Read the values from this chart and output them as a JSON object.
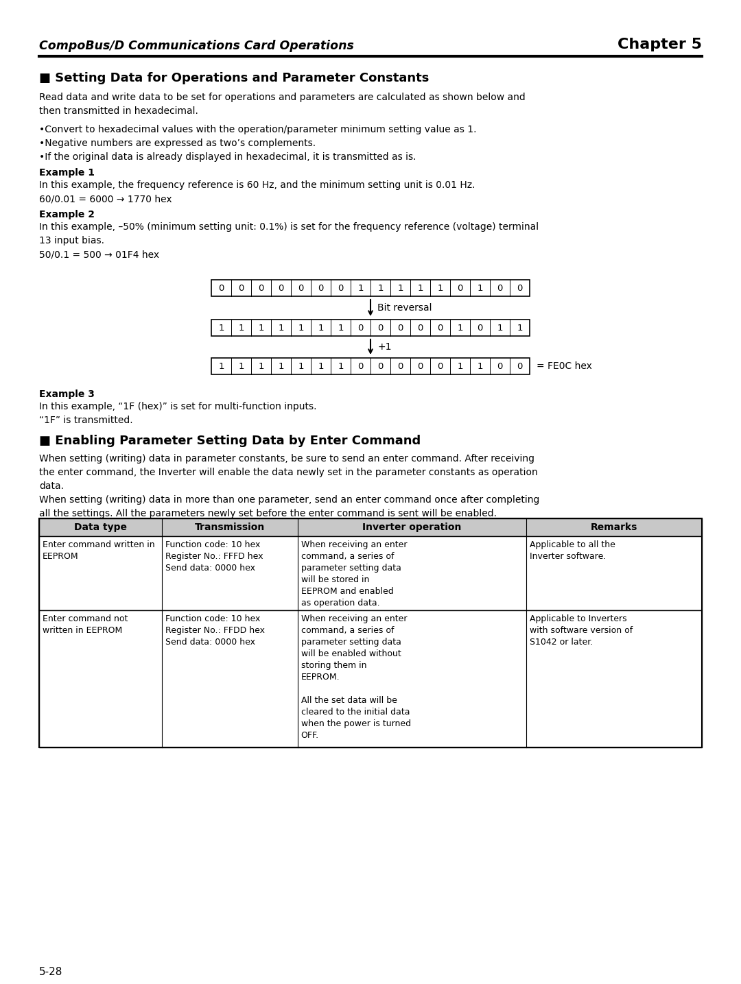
{
  "header_left": "CompoBus/D Communications Card Operations",
  "header_right": "Chapter 5",
  "page_number": "5-28",
  "section1_title": "■ Setting Data for Operations and Parameter Constants",
  "section1_intro": "Read data and write data to be set for operations and parameters are calculated as shown below and\nthen transmitted in hexadecimal.",
  "bullets": [
    "•Convert to hexadecimal values with the operation/parameter minimum setting value as 1.",
    "•Negative numbers are expressed as two’s complements.",
    "•If the original data is already displayed in hexadecimal, it is transmitted as is."
  ],
  "ex1_title": "Example 1",
  "ex1_body": "In this example, the frequency reference is 60 Hz, and the minimum setting unit is 0.01 Hz.\n60/0.01 = 6000 → 1770 hex",
  "ex2_title": "Example 2",
  "ex2_body": "In this example, –50% (minimum setting unit: 0.1%) is set for the frequency reference (voltage) terminal\n13 input bias.\n50/0.1 = 500 → 01F4 hex",
  "row1": [
    "0",
    "0",
    "0",
    "0",
    "0",
    "0",
    "0",
    "1",
    "1",
    "1",
    "1",
    "1",
    "0",
    "1",
    "0",
    "0"
  ],
  "row2": [
    "1",
    "1",
    "1",
    "1",
    "1",
    "1",
    "1",
    "0",
    "0",
    "0",
    "0",
    "0",
    "1",
    "0",
    "1",
    "1"
  ],
  "row3": [
    "1",
    "1",
    "1",
    "1",
    "1",
    "1",
    "1",
    "0",
    "0",
    "0",
    "0",
    "0",
    "1",
    "1",
    "0",
    "0"
  ],
  "label_bit_reversal": "Bit reversal",
  "label_plus1": "+1",
  "label_fe0c": "= FE0C hex",
  "ex3_title": "Example 3",
  "ex3_body": "In this example, “1F (hex)” is set for multi-function inputs.\n“1F” is transmitted.",
  "section2_title": "■ Enabling Parameter Setting Data by Enter Command",
  "section2_intro1": "When setting (writing) data in parameter constants, be sure to send an enter command. After receiving\nthe enter command, the Inverter will enable the data newly set in the parameter constants as operation\ndata.",
  "section2_intro2": "When setting (writing) data in more than one parameter, send an enter command once after completing\nall the settings. All the parameters newly set before the enter command is sent will be enabled.",
  "table_headers": [
    "Data type",
    "Transmission",
    "Inverter operation",
    "Remarks"
  ],
  "table_rows": [
    {
      "data_type": "Enter command written in\nEEPROM",
      "transmission": "Function code: 10 hex\nRegister No.: FFFD hex\nSend data: 0000 hex",
      "inverter_op": "When receiving an enter\ncommand, a series of\nparameter setting data\nwill be stored in\nEEPROM and enabled\nas operation data.",
      "remarks": "Applicable to all the\nInverter software."
    },
    {
      "data_type": "Enter command not\nwritten in EEPROM",
      "transmission": "Function code: 10 hex\nRegister No.: FFDD hex\nSend data: 0000 hex",
      "inverter_op": "When receiving an enter\ncommand, a series of\nparameter setting data\nwill be enabled without\nstoring them in\nEEPROM.\n\nAll the set data will be\ncleared to the initial data\nwhen the power is turned\nOFF.",
      "remarks": "Applicable to Inverters\nwith software version of\nS1042 or later."
    }
  ],
  "bg_color": "#ffffff",
  "text_color": "#000000",
  "table_header_bg": "#c8c8c8"
}
